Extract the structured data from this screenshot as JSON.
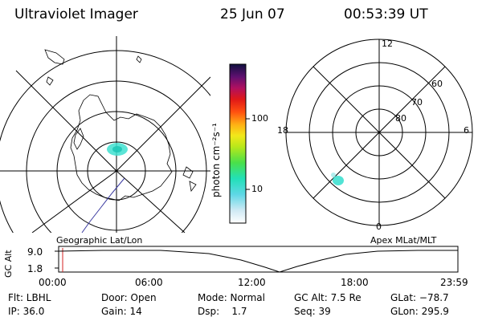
{
  "header": {
    "title": "Ultraviolet Imager",
    "date": "25 Jun 07",
    "time": "00:53:39 UT"
  },
  "colorbar": {
    "unit_label": "photon cm⁻²s⁻¹",
    "tick_labels": [
      "100",
      "10"
    ]
  },
  "polar_plot": {
    "mlt_labels": [
      "12",
      "18",
      "6",
      "0"
    ],
    "mlat_labels": [
      "60",
      "70",
      "80"
    ]
  },
  "timeline": {
    "left_caption": "Geographic Lat/Lon",
    "right_caption": "Apex MLat/MLT",
    "y_axis_label": "GC Alt",
    "y_ticks": [
      "9.0",
      "1.8"
    ],
    "x_ticks": [
      "00:00",
      "06:00",
      "12:00",
      "18:00",
      "23:59"
    ]
  },
  "info_panel": {
    "flt": "Flt: LBHL",
    "ip": "IP: 36.0",
    "door": "Door: Open",
    "gain": "Gain: 14",
    "mode": "Mode: Normal",
    "dsp": "Dsp:    1.7",
    "gc_alt": "GC Alt: 7.5 Re",
    "seq": "Seq: 39",
    "glat": "GLat: −78.7",
    "glon": "GLon: 295.9"
  },
  "colors": {
    "aurora": "#3fe0d0",
    "marker": "#d62020",
    "track": "#3a3aa0"
  }
}
